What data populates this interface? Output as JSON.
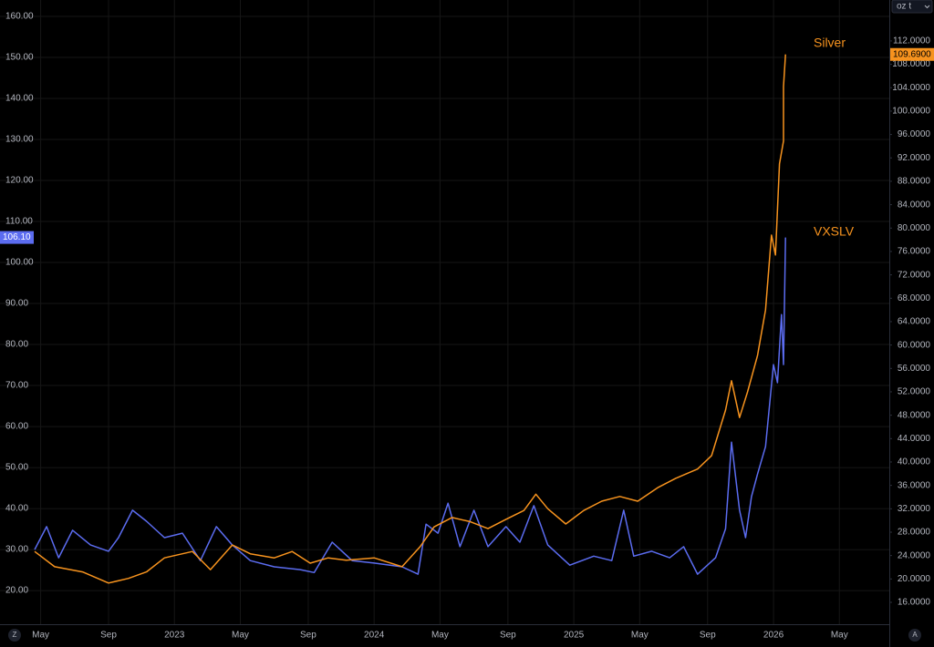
{
  "chart_data": {
    "type": "line",
    "unit_selector": "oz t",
    "left_scale_button": "Z",
    "right_scale_button": "A",
    "grid": true,
    "xlim": [
      2022.3,
      2026.58
    ],
    "xticks": [
      {
        "value": 2022.33,
        "label": "May"
      },
      {
        "value": 2022.67,
        "label": "Sep"
      },
      2023,
      {
        "value": 2023.33,
        "label": "May"
      },
      {
        "value": 2023.67,
        "label": "Sep"
      },
      2024,
      {
        "value": 2024.33,
        "label": "May"
      },
      {
        "value": 2024.67,
        "label": "Sep"
      },
      2025,
      {
        "value": 2025.33,
        "label": "May"
      },
      {
        "value": 2025.67,
        "label": "Sep"
      },
      2026,
      {
        "value": 2026.33,
        "label": "May"
      }
    ],
    "ylim": [
      11.8,
      164
    ],
    "yticks": [
      {
        "value": 20,
        "label": "20.00"
      },
      {
        "value": 30,
        "label": "30.00"
      },
      {
        "value": 40,
        "label": "40.00"
      },
      {
        "value": 50,
        "label": "50.00"
      },
      {
        "value": 60,
        "label": "60.00"
      },
      {
        "value": 70,
        "label": "70.00"
      },
      {
        "value": 80,
        "label": "80.00"
      },
      {
        "value": 90,
        "label": "90.00"
      },
      {
        "value": 100,
        "label": "100.00"
      },
      {
        "value": 110,
        "label": "110.00"
      },
      {
        "value": 120,
        "label": "120.00"
      },
      {
        "value": 130,
        "label": "130.00"
      },
      {
        "value": 140,
        "label": "140.00"
      },
      {
        "value": 150,
        "label": "150.00"
      },
      {
        "value": 160,
        "label": "160.00"
      }
    ],
    "y2lim": [
      12.26,
      119
    ],
    "y2ticks": [
      {
        "value": 16,
        "label": "16.0000"
      },
      {
        "value": 20,
        "label": "20.0000"
      },
      {
        "value": 24,
        "label": "24.0000"
      },
      {
        "value": 28,
        "label": "28.0000"
      },
      {
        "value": 32,
        "label": "32.0000"
      },
      {
        "value": 36,
        "label": "36.0000"
      },
      {
        "value": 40,
        "label": "40.0000"
      },
      {
        "value": 44,
        "label": "44.0000"
      },
      {
        "value": 48,
        "label": "48.0000"
      },
      {
        "value": 52,
        "label": "52.0000"
      },
      {
        "value": 56,
        "label": "56.0000"
      },
      {
        "value": 60,
        "label": "60.0000"
      },
      {
        "value": 64,
        "label": "64.0000"
      },
      {
        "value": 68,
        "label": "68.0000"
      },
      {
        "value": 72,
        "label": "72.0000"
      },
      {
        "value": 76,
        "label": "76.0000"
      },
      {
        "value": 80,
        "label": "80.0000"
      },
      {
        "value": 84,
        "label": "84.0000"
      },
      {
        "value": 88,
        "label": "88.0000"
      },
      {
        "value": 92,
        "label": "92.0000"
      },
      {
        "value": 96,
        "label": "96.0000"
      },
      {
        "value": 100,
        "label": "100.0000"
      },
      {
        "value": 104,
        "label": "104.0000"
      },
      {
        "value": 108,
        "label": "108.0000"
      },
      {
        "value": 112,
        "label": "112.0000"
      }
    ],
    "series": [
      {
        "name": "VXSLV",
        "color": "#5b6cf0",
        "axis": "y",
        "last_value_label": "106.10",
        "x": [
          2022.3,
          2022.36,
          2022.42,
          2022.49,
          2022.58,
          2022.67,
          2022.72,
          2022.79,
          2022.86,
          2022.95,
          2023.04,
          2023.13,
          2023.21,
          2023.29,
          2023.38,
          2023.5,
          2023.63,
          2023.7,
          2023.79,
          2023.89,
          2024.0,
          2024.14,
          2024.22,
          2024.26,
          2024.32,
          2024.37,
          2024.43,
          2024.5,
          2024.57,
          2024.66,
          2024.73,
          2024.8,
          2024.87,
          2024.98,
          2025.1,
          2025.19,
          2025.25,
          2025.3,
          2025.39,
          2025.48,
          2025.55,
          2025.62,
          2025.71,
          2025.76,
          2025.79,
          2025.83,
          2025.86,
          2025.89,
          2025.92,
          2025.96,
          2026.0,
          2026.02,
          2026.04,
          2026.05,
          2026.06
        ],
        "values": [
          30.0,
          35.6,
          28.0,
          34.7,
          31.1,
          29.6,
          32.9,
          39.6,
          36.9,
          32.9,
          34.0,
          27.3,
          35.6,
          31.1,
          27.3,
          25.8,
          25.1,
          24.4,
          31.8,
          27.3,
          26.7,
          25.8,
          24.0,
          36.2,
          34.0,
          41.3,
          30.7,
          39.6,
          30.7,
          35.6,
          31.8,
          40.7,
          31.1,
          26.2,
          28.4,
          27.3,
          39.6,
          28.4,
          29.6,
          28.0,
          30.7,
          24.0,
          28.0,
          35.1,
          56.2,
          39.6,
          32.9,
          42.9,
          48.4,
          55.1,
          75.1,
          70.7,
          87.3,
          75.1,
          106.1
        ]
      },
      {
        "name": "Silver",
        "color": "#f7931e",
        "axis": "y2",
        "last_value_label": "109.6900",
        "x": [
          2022.3,
          2022.4,
          2022.54,
          2022.67,
          2022.77,
          2022.86,
          2022.95,
          2023.09,
          2023.18,
          2023.29,
          2023.38,
          2023.5,
          2023.59,
          2023.68,
          2023.77,
          2023.86,
          2024.0,
          2024.14,
          2024.23,
          2024.3,
          2024.39,
          2024.48,
          2024.57,
          2024.66,
          2024.75,
          2024.81,
          2024.87,
          2024.96,
          2025.05,
          2025.14,
          2025.23,
          2025.32,
          2025.42,
          2025.51,
          2025.62,
          2025.69,
          2025.76,
          2025.79,
          2025.83,
          2025.87,
          2025.92,
          2025.96,
          2025.99,
          2026.01,
          2026.03,
          2026.05,
          2026.05,
          2026.06
        ],
        "values": [
          24.7,
          22.1,
          21.2,
          19.3,
          20.1,
          21.2,
          23.6,
          24.7,
          21.6,
          25.8,
          24.3,
          23.6,
          24.7,
          22.7,
          23.6,
          23.2,
          23.6,
          22.1,
          25.5,
          28.9,
          30.5,
          29.8,
          28.6,
          30.2,
          31.7,
          34.5,
          32.0,
          29.4,
          31.7,
          33.3,
          34.1,
          33.3,
          35.6,
          37.2,
          38.8,
          41.1,
          48.9,
          53.9,
          47.6,
          52.0,
          58.2,
          66.0,
          78.8,
          75.4,
          91.0,
          94.9,
          104.2,
          109.69
        ]
      }
    ]
  }
}
